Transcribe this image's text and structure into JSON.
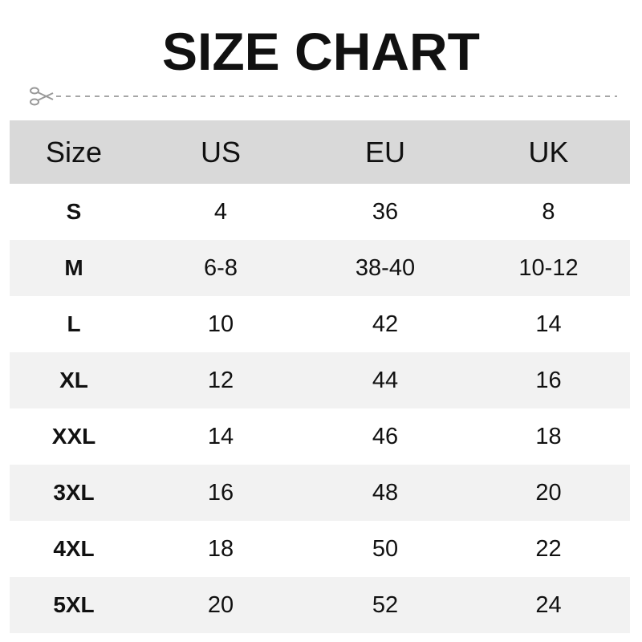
{
  "title": "SIZE CHART",
  "icons": {
    "cut": "scissors-icon"
  },
  "colors": {
    "header_bg": "#d9d9d9",
    "stripe_bg": "#f2f2f2",
    "dash": "#a6a6a6"
  },
  "table": {
    "headers": [
      "Size",
      "US",
      "EU",
      "UK"
    ],
    "rows": [
      [
        "S",
        "4",
        "36",
        "8"
      ],
      [
        "M",
        "6-8",
        "38-40",
        "10-12"
      ],
      [
        "L",
        "10",
        "42",
        "14"
      ],
      [
        "XL",
        "12",
        "44",
        "16"
      ],
      [
        "XXL",
        "14",
        "46",
        "18"
      ],
      [
        "3XL",
        "16",
        "48",
        "20"
      ],
      [
        "4XL",
        "18",
        "50",
        "22"
      ],
      [
        "5XL",
        "20",
        "52",
        "24"
      ]
    ]
  }
}
